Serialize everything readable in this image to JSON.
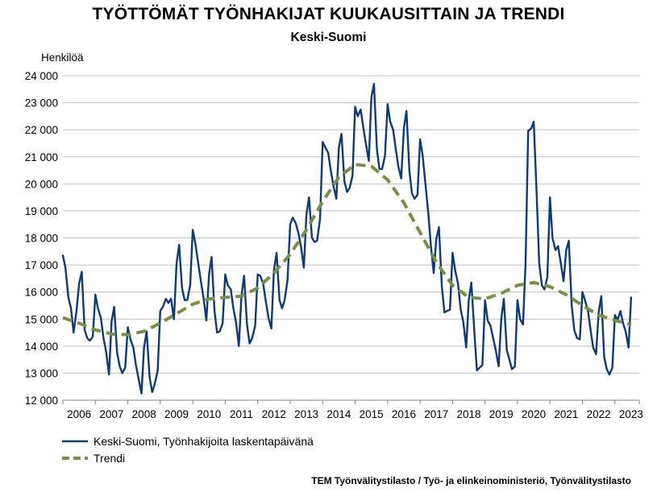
{
  "chart_data": {
    "type": "line",
    "title": "TYÖTTÖMÄT TYÖNHAKIJAT KUUKAUSITTAIN JA TRENDI",
    "subtitle": "Keski-Suomi",
    "ylabel": "Henkilöä",
    "ylim": [
      12000,
      24000
    ],
    "yticks": [
      12000,
      13000,
      14000,
      15000,
      16000,
      17000,
      18000,
      19000,
      20000,
      21000,
      22000,
      23000,
      24000
    ],
    "ytick_labels": [
      "12 000",
      "13 000",
      "14 000",
      "15 000",
      "16 000",
      "17 000",
      "18 000",
      "19 000",
      "20 000",
      "21 000",
      "22 000",
      "23 000",
      "24 000"
    ],
    "xlim": [
      2006.0,
      2023.75
    ],
    "xticks": [
      "2006",
      "2007",
      "2008",
      "2009",
      "2010",
      "2011",
      "2012",
      "2013",
      "2014",
      "2015",
      "2016",
      "2017",
      "2018",
      "2019",
      "2020",
      "2021",
      "2022",
      "2023"
    ],
    "grid": "horizontal",
    "legend_position": "bottom-left",
    "series": [
      {
        "name": "Keski-Suomi, Työnhakijoita laskentapäivänä",
        "color": "#0b3a7e",
        "style": "solid",
        "points": [
          [
            2006.0,
            17350
          ],
          [
            2006.08,
            16900
          ],
          [
            2006.17,
            15800
          ],
          [
            2006.25,
            15400
          ],
          [
            2006.33,
            14500
          ],
          [
            2006.42,
            15300
          ],
          [
            2006.5,
            16300
          ],
          [
            2006.58,
            16750
          ],
          [
            2006.67,
            14600
          ],
          [
            2006.75,
            14300
          ],
          [
            2006.83,
            14200
          ],
          [
            2006.92,
            14350
          ],
          [
            2007.0,
            15900
          ],
          [
            2007.08,
            15400
          ],
          [
            2007.17,
            15050
          ],
          [
            2007.25,
            14300
          ],
          [
            2007.33,
            13800
          ],
          [
            2007.42,
            12950
          ],
          [
            2007.5,
            14900
          ],
          [
            2007.58,
            15450
          ],
          [
            2007.67,
            13750
          ],
          [
            2007.75,
            13250
          ],
          [
            2007.83,
            13000
          ],
          [
            2007.92,
            13200
          ],
          [
            2008.0,
            14700
          ],
          [
            2008.08,
            14250
          ],
          [
            2008.17,
            13950
          ],
          [
            2008.25,
            13300
          ],
          [
            2008.33,
            12800
          ],
          [
            2008.42,
            12250
          ],
          [
            2008.5,
            13950
          ],
          [
            2008.58,
            14550
          ],
          [
            2008.67,
            12850
          ],
          [
            2008.75,
            12300
          ],
          [
            2008.83,
            12600
          ],
          [
            2008.92,
            13100
          ],
          [
            2009.0,
            15300
          ],
          [
            2009.08,
            15450
          ],
          [
            2009.17,
            15750
          ],
          [
            2009.25,
            15600
          ],
          [
            2009.33,
            15750
          ],
          [
            2009.42,
            15000
          ],
          [
            2009.5,
            17050
          ],
          [
            2009.58,
            17750
          ],
          [
            2009.67,
            16150
          ],
          [
            2009.75,
            15700
          ],
          [
            2009.83,
            15700
          ],
          [
            2009.92,
            16250
          ],
          [
            2010.0,
            18300
          ],
          [
            2010.08,
            17800
          ],
          [
            2010.17,
            17050
          ],
          [
            2010.25,
            16400
          ],
          [
            2010.33,
            15800
          ],
          [
            2010.42,
            14950
          ],
          [
            2010.5,
            16650
          ],
          [
            2010.58,
            17300
          ],
          [
            2010.67,
            15300
          ],
          [
            2010.75,
            14500
          ],
          [
            2010.83,
            14550
          ],
          [
            2010.92,
            14850
          ],
          [
            2011.0,
            16650
          ],
          [
            2011.08,
            16250
          ],
          [
            2011.17,
            16100
          ],
          [
            2011.25,
            15400
          ],
          [
            2011.33,
            14900
          ],
          [
            2011.42,
            14000
          ],
          [
            2011.5,
            15850
          ],
          [
            2011.58,
            16600
          ],
          [
            2011.67,
            14800
          ],
          [
            2011.75,
            14100
          ],
          [
            2011.83,
            14300
          ],
          [
            2011.92,
            14750
          ],
          [
            2012.0,
            16650
          ],
          [
            2012.08,
            16600
          ],
          [
            2012.17,
            16300
          ],
          [
            2012.25,
            15650
          ],
          [
            2012.33,
            15050
          ],
          [
            2012.42,
            14650
          ],
          [
            2012.5,
            16800
          ],
          [
            2012.58,
            17450
          ],
          [
            2012.67,
            15700
          ],
          [
            2012.75,
            15400
          ],
          [
            2012.83,
            15700
          ],
          [
            2012.92,
            16450
          ],
          [
            2013.0,
            18500
          ],
          [
            2013.08,
            18750
          ],
          [
            2013.17,
            18550
          ],
          [
            2013.25,
            18200
          ],
          [
            2013.33,
            17700
          ],
          [
            2013.42,
            16900
          ],
          [
            2013.5,
            18850
          ],
          [
            2013.58,
            19500
          ],
          [
            2013.67,
            18000
          ],
          [
            2013.75,
            17850
          ],
          [
            2013.83,
            17900
          ],
          [
            2013.92,
            18700
          ],
          [
            2014.0,
            21550
          ],
          [
            2014.08,
            21350
          ],
          [
            2014.17,
            21150
          ],
          [
            2014.25,
            20500
          ],
          [
            2014.33,
            19950
          ],
          [
            2014.42,
            19450
          ],
          [
            2014.5,
            21350
          ],
          [
            2014.58,
            21850
          ],
          [
            2014.67,
            20100
          ],
          [
            2014.75,
            19700
          ],
          [
            2014.83,
            19850
          ],
          [
            2014.92,
            20300
          ],
          [
            2015.0,
            22850
          ],
          [
            2015.08,
            22500
          ],
          [
            2015.17,
            22750
          ],
          [
            2015.25,
            22100
          ],
          [
            2015.33,
            21500
          ],
          [
            2015.42,
            20850
          ],
          [
            2015.5,
            23200
          ],
          [
            2015.58,
            23700
          ],
          [
            2015.67,
            21300
          ],
          [
            2015.75,
            20550
          ],
          [
            2015.83,
            20550
          ],
          [
            2015.92,
            21050
          ],
          [
            2016.0,
            22950
          ],
          [
            2016.08,
            22300
          ],
          [
            2016.17,
            22000
          ],
          [
            2016.25,
            21300
          ],
          [
            2016.33,
            20650
          ],
          [
            2016.42,
            20200
          ],
          [
            2016.5,
            22050
          ],
          [
            2016.58,
            22700
          ],
          [
            2016.67,
            20500
          ],
          [
            2016.75,
            19650
          ],
          [
            2016.83,
            19450
          ],
          [
            2016.92,
            19600
          ],
          [
            2017.0,
            21650
          ],
          [
            2017.08,
            21050
          ],
          [
            2017.17,
            19950
          ],
          [
            2017.25,
            18950
          ],
          [
            2017.33,
            17750
          ],
          [
            2017.42,
            16700
          ],
          [
            2017.5,
            17950
          ],
          [
            2017.58,
            18400
          ],
          [
            2017.67,
            16200
          ],
          [
            2017.75,
            15250
          ],
          [
            2017.83,
            15300
          ],
          [
            2017.92,
            15350
          ],
          [
            2018.0,
            17450
          ],
          [
            2018.08,
            16800
          ],
          [
            2018.17,
            16300
          ],
          [
            2018.25,
            15350
          ],
          [
            2018.33,
            14900
          ],
          [
            2018.42,
            13950
          ],
          [
            2018.5,
            15700
          ],
          [
            2018.58,
            16350
          ],
          [
            2018.67,
            14550
          ],
          [
            2018.75,
            13100
          ],
          [
            2018.83,
            13200
          ],
          [
            2018.92,
            13300
          ],
          [
            2019.0,
            15700
          ],
          [
            2019.08,
            14950
          ],
          [
            2019.17,
            14750
          ],
          [
            2019.25,
            14300
          ],
          [
            2019.33,
            13850
          ],
          [
            2019.42,
            13250
          ],
          [
            2019.5,
            15000
          ],
          [
            2019.58,
            15750
          ],
          [
            2019.67,
            13850
          ],
          [
            2019.75,
            13500
          ],
          [
            2019.83,
            13150
          ],
          [
            2019.92,
            13250
          ],
          [
            2020.0,
            15700
          ],
          [
            2020.08,
            15000
          ],
          [
            2020.17,
            14800
          ],
          [
            2020.25,
            17100
          ],
          [
            2020.33,
            21950
          ],
          [
            2020.42,
            22050
          ],
          [
            2020.5,
            22300
          ],
          [
            2020.58,
            19950
          ],
          [
            2020.67,
            17050
          ],
          [
            2020.75,
            16250
          ],
          [
            2020.83,
            16100
          ],
          [
            2020.92,
            16550
          ],
          [
            2021.0,
            19500
          ],
          [
            2021.08,
            18000
          ],
          [
            2021.17,
            17550
          ],
          [
            2021.25,
            17700
          ],
          [
            2021.33,
            17100
          ],
          [
            2021.42,
            16400
          ],
          [
            2021.5,
            17550
          ],
          [
            2021.58,
            17900
          ],
          [
            2021.67,
            15500
          ],
          [
            2021.75,
            14600
          ],
          [
            2021.83,
            14300
          ],
          [
            2021.92,
            14250
          ],
          [
            2022.0,
            16000
          ],
          [
            2022.08,
            15700
          ],
          [
            2022.17,
            15300
          ],
          [
            2022.25,
            14600
          ],
          [
            2022.33,
            13950
          ],
          [
            2022.42,
            13700
          ],
          [
            2022.5,
            15250
          ],
          [
            2022.58,
            15850
          ],
          [
            2022.67,
            13600
          ],
          [
            2022.75,
            13150
          ],
          [
            2022.83,
            12950
          ],
          [
            2022.92,
            13200
          ],
          [
            2023.0,
            15150
          ],
          [
            2023.08,
            14950
          ],
          [
            2023.17,
            15300
          ],
          [
            2023.25,
            14850
          ],
          [
            2023.33,
            14550
          ],
          [
            2023.42,
            13950
          ],
          [
            2023.5,
            15800
          ]
        ]
      },
      {
        "name": "Trendi",
        "color": "#76923c",
        "style": "dashed",
        "points": [
          [
            2006.0,
            15050
          ],
          [
            2006.5,
            14850
          ],
          [
            2007.0,
            14600
          ],
          [
            2007.5,
            14450
          ],
          [
            2008.0,
            14420
          ],
          [
            2008.5,
            14550
          ],
          [
            2009.0,
            14850
          ],
          [
            2009.5,
            15200
          ],
          [
            2010.0,
            15550
          ],
          [
            2010.5,
            15750
          ],
          [
            2011.0,
            15800
          ],
          [
            2011.5,
            15850
          ],
          [
            2012.0,
            16150
          ],
          [
            2012.5,
            16700
          ],
          [
            2013.0,
            17400
          ],
          [
            2013.5,
            18300
          ],
          [
            2014.0,
            19350
          ],
          [
            2014.5,
            20250
          ],
          [
            2015.0,
            20720
          ],
          [
            2015.5,
            20650
          ],
          [
            2016.0,
            20150
          ],
          [
            2016.5,
            19300
          ],
          [
            2017.0,
            18200
          ],
          [
            2017.5,
            17100
          ],
          [
            2018.0,
            16250
          ],
          [
            2018.5,
            15800
          ],
          [
            2019.0,
            15750
          ],
          [
            2019.5,
            15950
          ],
          [
            2020.0,
            16250
          ],
          [
            2020.5,
            16350
          ],
          [
            2021.0,
            16200
          ],
          [
            2021.5,
            15900
          ],
          [
            2022.0,
            15500
          ],
          [
            2022.5,
            15150
          ],
          [
            2023.0,
            14950
          ],
          [
            2023.5,
            14800
          ]
        ]
      }
    ]
  },
  "legend": {
    "items": [
      {
        "label": "Keski-Suomi, Työnhakijoita laskentapäivänä",
        "color": "#0b3a7e"
      },
      {
        "label": "Trendi",
        "color": "#76923c"
      }
    ]
  },
  "source": "TEM Työnvälitystilasto / Työ- ja elinkeinoministeriö, Työnvälitystilasto"
}
